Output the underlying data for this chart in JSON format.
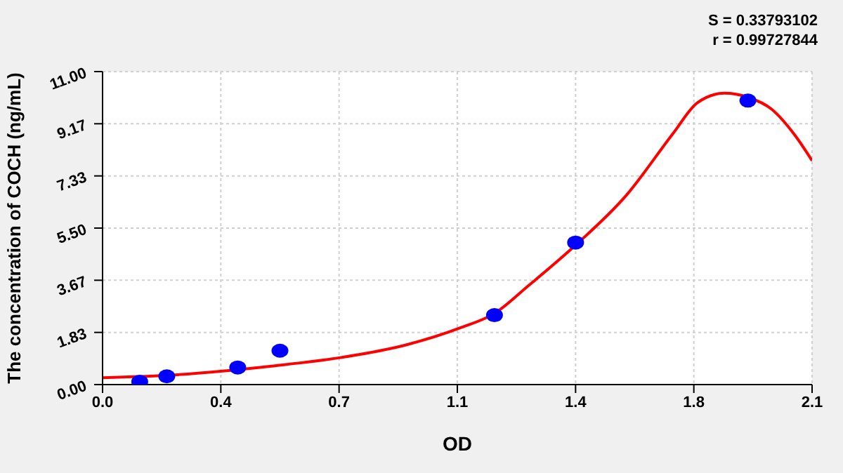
{
  "chart_data": {
    "type": "scatter",
    "xlabel": "OD",
    "ylabel": "The concentration of  COCH  (ng/mL)",
    "annotations": [
      "S = 0.33793102",
      "r = 0.99727844"
    ],
    "series": [
      {
        "color": "#0000ff",
        "marker": "circle",
        "x": [
          0.11,
          0.19,
          0.4,
          0.525,
          1.16,
          1.4,
          1.91
        ],
        "values": [
          0.1,
          0.29,
          0.6,
          1.19,
          2.44,
          4.99,
          9.98
        ]
      },
      {
        "type": "line",
        "color": "#ff0000",
        "marker": "none",
        "line_style": "solid",
        "x": [
          0,
          0.2,
          0.35,
          0.5,
          0.7,
          0.9,
          1.06,
          1.16,
          1.26,
          1.4,
          1.55,
          1.69,
          1.76,
          1.84,
          1.91,
          1.98,
          2.05,
          2.1
        ],
        "values": [
          0.24,
          0.33,
          0.47,
          0.65,
          0.94,
          1.4,
          2.0,
          2.5,
          3.47,
          4.9,
          6.65,
          8.85,
          9.9,
          10.24,
          10.1,
          9.68,
          8.75,
          7.87
        ]
      }
    ],
    "xlim": [
      0,
      2.1
    ],
    "xticks": [
      {
        "value": 0,
        "label": "0.0"
      },
      {
        "value": 0.35,
        "label": "0.4"
      },
      0.7,
      {
        "value": 1.05,
        "label": "1.1"
      },
      1.4,
      {
        "value": 1.75,
        "label": "1.8"
      },
      2.1
    ],
    "ylim": [
      0,
      11
    ],
    "yticks": [
      {
        "value": 0,
        "label": "0.00"
      },
      {
        "value": 1.8333,
        "label": "1.83"
      },
      {
        "value": 3.6667,
        "label": "3.67"
      },
      {
        "value": 5.5,
        "label": "5.50"
      },
      {
        "value": 7.3333,
        "label": "7.33"
      },
      {
        "value": 9.1667,
        "label": "9.17"
      },
      {
        "value": 11,
        "label": "11.00"
      }
    ],
    "grid": true
  }
}
